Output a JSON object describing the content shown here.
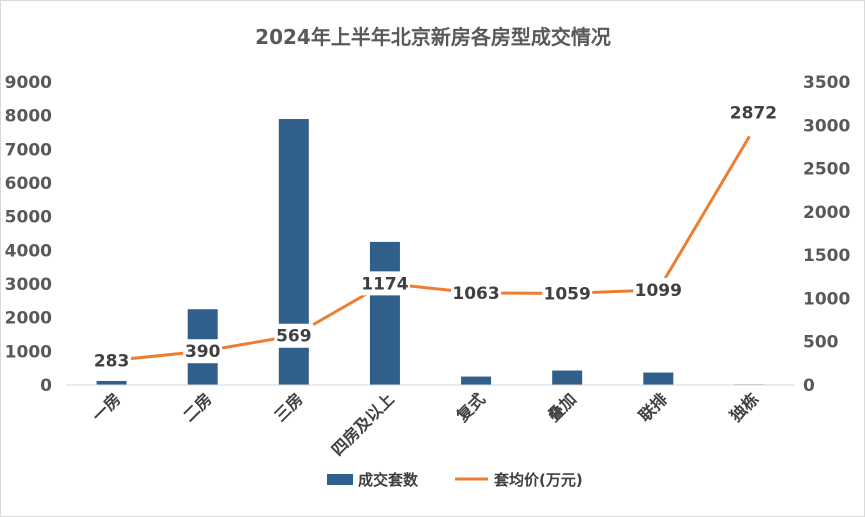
{
  "chart_data": {
    "type": "bar",
    "title": "2024年上半年北京新房各房型成交情况",
    "categories": [
      "一房",
      "二房",
      "三房",
      "四房及以上",
      "复式",
      "叠加",
      "联排",
      "独栋"
    ],
    "series": [
      {
        "name": "成交套数",
        "type": "bar",
        "axis": "left",
        "color": "#2f5f8a",
        "values": [
          120,
          2250,
          7900,
          4250,
          250,
          430,
          370,
          20
        ]
      },
      {
        "name": "套均价(万元)",
        "type": "line",
        "axis": "right",
        "color": "#ed7d31",
        "values": [
          283,
          390,
          569,
          1174,
          1063,
          1059,
          1099,
          2872
        ],
        "labels": [
          "283",
          "390",
          "569",
          "1174",
          "1063",
          "1059",
          "1099",
          "2872"
        ]
      }
    ],
    "left_axis": {
      "min": 0,
      "max": 9000,
      "ticks": [
        "0",
        "1000",
        "2000",
        "3000",
        "4000",
        "5000",
        "6000",
        "7000",
        "8000",
        "9000"
      ]
    },
    "right_axis": {
      "min": 0,
      "max": 3500,
      "ticks": [
        "0",
        "500",
        "1000",
        "1500",
        "2000",
        "2500",
        "3000",
        "3500"
      ]
    },
    "legend_position": "bottom"
  }
}
